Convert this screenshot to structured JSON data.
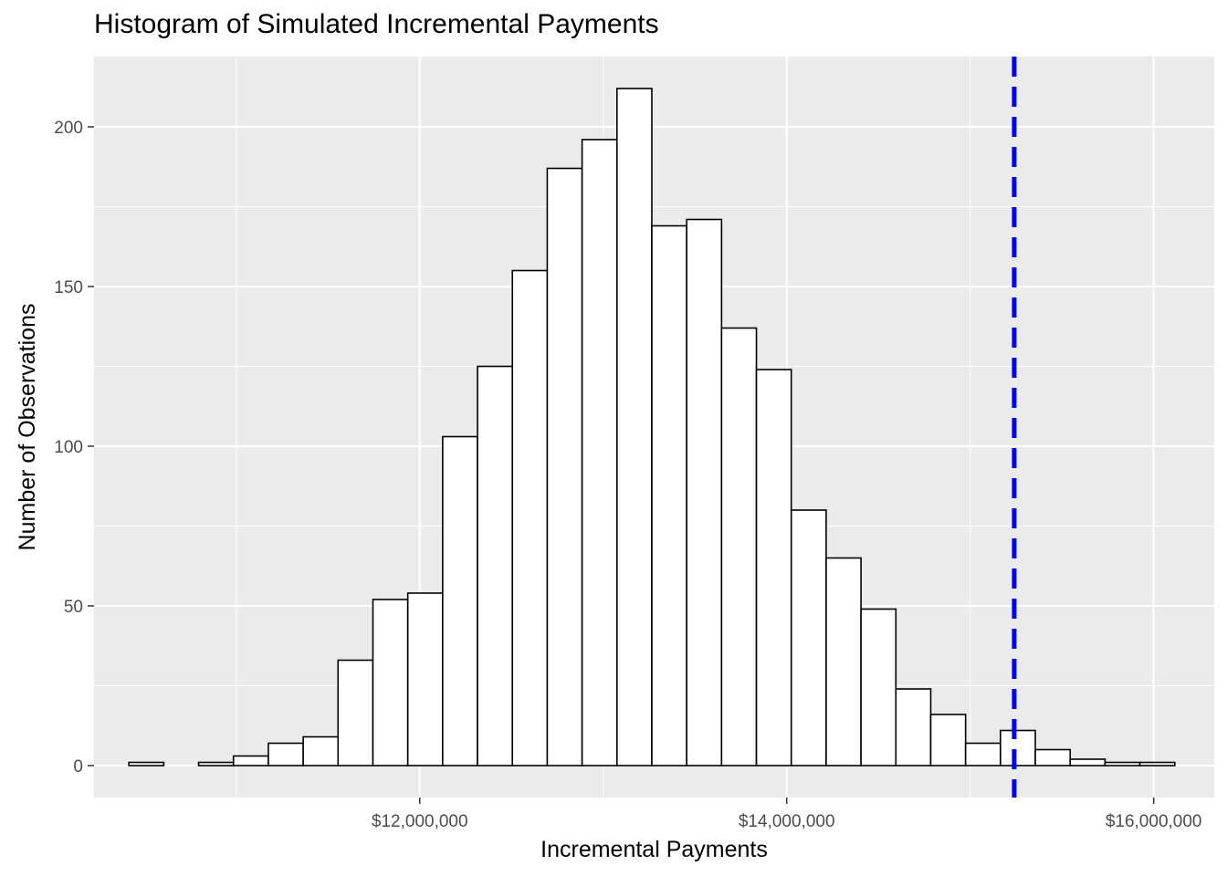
{
  "chart_data": {
    "type": "bar",
    "title": "Histogram of Simulated Incremental Payments",
    "xlabel": "Incremental Payments",
    "ylabel": "Number of Observations",
    "bin_width": 190000,
    "bin_centers": [
      10510000,
      10700000,
      10890000,
      11080000,
      11270000,
      11460000,
      11650000,
      11840000,
      12030000,
      12220000,
      12410000,
      12600000,
      12790000,
      12980000,
      13170000,
      13360000,
      13550000,
      13740000,
      13930000,
      14120000,
      14310000,
      14500000,
      14690000,
      14880000,
      15070000,
      15260000,
      15450000,
      15640000,
      15830000,
      16020000
    ],
    "values": [
      1,
      0,
      1,
      3,
      7,
      9,
      33,
      52,
      54,
      103,
      125,
      155,
      187,
      196,
      212,
      169,
      171,
      137,
      124,
      80,
      65,
      49,
      24,
      16,
      7,
      11,
      5,
      2,
      1,
      1
    ],
    "xlim": [
      10225000,
      16330000
    ],
    "ylim": [
      -10,
      222
    ],
    "x_ticks": [
      12000000,
      14000000,
      16000000
    ],
    "x_tick_labels": [
      "$12,000,000",
      "$14,000,000",
      "$16,000,000"
    ],
    "x_minor_ticks": [
      11000000,
      13000000,
      15000000
    ],
    "y_ticks": [
      0,
      50,
      100,
      150,
      200
    ],
    "y_tick_labels": [
      "0",
      "50",
      "100",
      "150",
      "200"
    ],
    "y_minor_ticks": [
      25,
      75,
      125,
      175
    ],
    "vline": {
      "x": 15240000,
      "color": "#0000ee",
      "style": "dashed"
    },
    "bar_fill": "#ffffff",
    "bar_stroke": "#000000",
    "panel_background": "#ebebeb",
    "grid": true,
    "legend": "none"
  }
}
